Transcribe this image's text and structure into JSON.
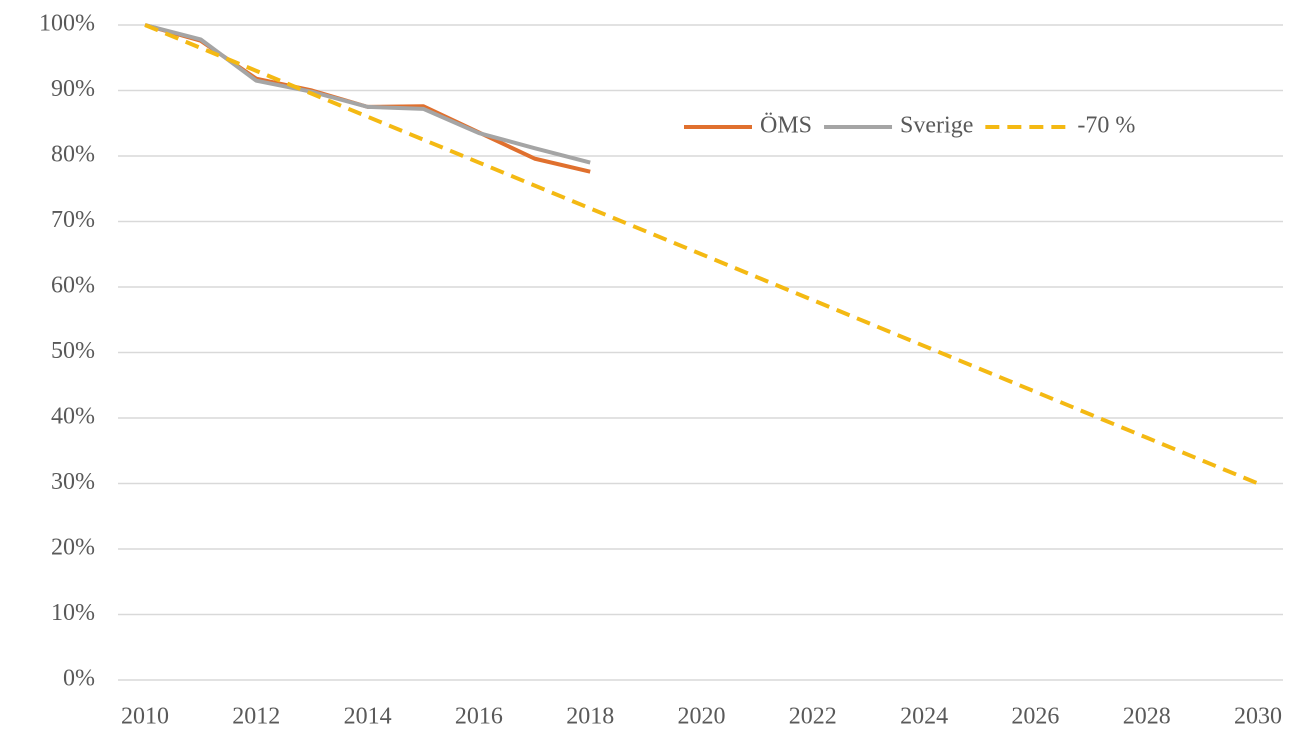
{
  "chart_data": {
    "type": "line",
    "x": [
      2010,
      2011,
      2012,
      2013,
      2014,
      2015,
      2016,
      2017,
      2018,
      2019,
      2020,
      2021,
      2022,
      2023,
      2024,
      2025,
      2026,
      2027,
      2028,
      2029,
      2030
    ],
    "xlim": [
      2010,
      2030
    ],
    "xticks": [
      2010,
      2012,
      2014,
      2016,
      2018,
      2020,
      2022,
      2024,
      2026,
      2028,
      2030
    ],
    "ylim": [
      0,
      100
    ],
    "yticks": [
      {
        "value": 0,
        "label": "0%"
      },
      {
        "value": 10,
        "label": "10%"
      },
      {
        "value": 20,
        "label": "20%"
      },
      {
        "value": 30,
        "label": "30%"
      },
      {
        "value": 40,
        "label": "40%"
      },
      {
        "value": 50,
        "label": "50%"
      },
      {
        "value": 60,
        "label": "60%"
      },
      {
        "value": 70,
        "label": "70%"
      },
      {
        "value": 80,
        "label": "80%"
      },
      {
        "value": 90,
        "label": "90%"
      },
      {
        "value": 100,
        "label": "100%"
      }
    ],
    "grid": true,
    "legend": "upper right",
    "series": [
      {
        "name": "ÖMS",
        "color": "#e0702e",
        "style": "solid",
        "values": [
          100,
          97.6,
          91.8,
          90,
          87.5,
          87.6,
          83.6,
          79.6,
          77.6,
          null,
          null,
          null,
          null,
          null,
          null,
          null,
          null,
          null,
          null,
          null,
          null
        ]
      },
      {
        "name": "Sverige",
        "color": "#a5a5a5",
        "style": "solid",
        "values": [
          100,
          97.8,
          91.5,
          89.8,
          87.5,
          87.2,
          83.5,
          81.2,
          79,
          null,
          null,
          null,
          null,
          null,
          null,
          null,
          null,
          null,
          null,
          null,
          null
        ]
      },
      {
        "name": "-70 %",
        "color": "#f4b913",
        "style": "dashed",
        "values": [
          100,
          96.5,
          93,
          89.5,
          86,
          82.5,
          79,
          75.5,
          72,
          68.5,
          65,
          61.5,
          58,
          54.5,
          51,
          47.5,
          44,
          40.5,
          37,
          33.5,
          30
        ]
      }
    ]
  }
}
